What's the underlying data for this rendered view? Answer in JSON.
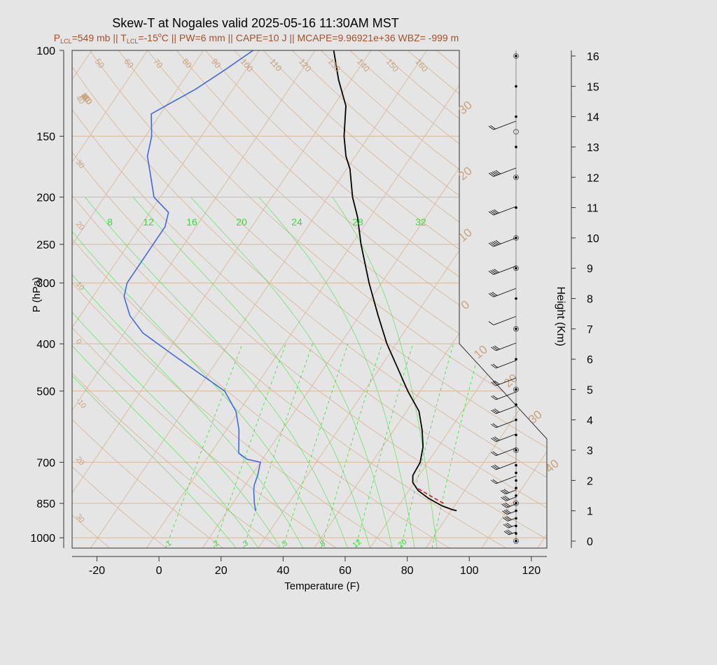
{
  "chart_data": {
    "type": "skew-t",
    "title": "Skew-T at Nogales valid 2025-05-16 11:30AM MST",
    "subtitle_parts": {
      "p_sym": "P",
      "p_sub": "LCL",
      "p_val": "=549 mb || ",
      "t_sym": "T",
      "t_sub": "LCL",
      "t_val": "=-15",
      "deg": "o",
      "t_rest": "C || PW=6 mm || CAPE=10 J || MCAPE=9.96921e+36 WBZ= -999 m"
    },
    "xlabel": "Temperature (F)",
    "ylabel": "P (hPa)",
    "right_axis_label": "Height (Km)",
    "xlim": [
      -28,
      125
    ],
    "ylim_hpa": [
      1050,
      100
    ],
    "x_ticks": [
      -20,
      0,
      20,
      40,
      60,
      80,
      100,
      120
    ],
    "p_ticks": [
      100,
      150,
      200,
      250,
      300,
      400,
      500,
      700,
      850,
      1000
    ],
    "height_ticks_km": [
      0,
      1,
      2,
      3,
      4,
      5,
      6,
      7,
      8,
      9,
      10,
      11,
      12,
      13,
      14,
      15,
      16
    ],
    "isotherm_labels": [
      "-40",
      "-30",
      "-20",
      "-10",
      "0",
      "10",
      "20",
      "30",
      "40",
      "50",
      "60",
      "70",
      "80",
      "90",
      "100",
      "110",
      "120",
      "130",
      "140",
      "150",
      "160"
    ],
    "isotherm_labels_values": [
      -40,
      -30,
      -20,
      -10,
      0,
      10,
      20,
      30,
      40,
      50,
      60,
      70,
      80,
      90,
      100,
      110,
      120,
      130,
      140,
      150,
      160
    ],
    "dry_adiabat_labels": [
      "-30",
      "-20",
      "-10",
      "0",
      "10",
      "20",
      "30",
      "40"
    ],
    "mixing_ratio_labels": [
      "1",
      "2",
      "3",
      "5",
      "8",
      "12",
      "20"
    ],
    "wetbulb_labels": [
      "8",
      "12",
      "16",
      "20",
      "24",
      "28",
      "32"
    ],
    "temperature_profile": [
      {
        "p": 880,
        "t": 87.8
      },
      {
        "p": 875,
        "t": 86
      },
      {
        "p": 860,
        "t": 82
      },
      {
        "p": 830,
        "t": 76
      },
      {
        "p": 800,
        "t": 71
      },
      {
        "p": 770,
        "t": 67.5
      },
      {
        "p": 745,
        "t": 66
      },
      {
        "p": 700,
        "t": 65.5
      },
      {
        "p": 650,
        "t": 63
      },
      {
        "p": 600,
        "t": 59
      },
      {
        "p": 550,
        "t": 54
      },
      {
        "p": 500,
        "t": 46
      },
      {
        "p": 450,
        "t": 38
      },
      {
        "p": 400,
        "t": 29
      },
      {
        "p": 350,
        "t": 20
      },
      {
        "p": 300,
        "t": 10
      },
      {
        "p": 250,
        "t": -1
      },
      {
        "p": 220,
        "t": -8
      },
      {
        "p": 200,
        "t": -14
      },
      {
        "p": 175,
        "t": -21
      },
      {
        "p": 165,
        "t": -25
      },
      {
        "p": 150,
        "t": -30
      },
      {
        "p": 130,
        "t": -36
      },
      {
        "p": 115,
        "t": -44
      },
      {
        "p": 100,
        "t": -52
      }
    ],
    "dewpoint_profile": [
      {
        "p": 880,
        "t": 23
      },
      {
        "p": 850,
        "t": 21
      },
      {
        "p": 800,
        "t": 18
      },
      {
        "p": 780,
        "t": 17
      },
      {
        "p": 745,
        "t": 16
      },
      {
        "p": 700,
        "t": 14
      },
      {
        "p": 690,
        "t": 9
      },
      {
        "p": 670,
        "t": 5
      },
      {
        "p": 600,
        "t": 0
      },
      {
        "p": 550,
        "t": -5
      },
      {
        "p": 500,
        "t": -13
      },
      {
        "p": 460,
        "t": -25
      },
      {
        "p": 420,
        "t": -38
      },
      {
        "p": 380,
        "t": -52
      },
      {
        "p": 350,
        "t": -60
      },
      {
        "p": 320,
        "t": -66
      },
      {
        "p": 300,
        "t": -68
      },
      {
        "p": 260,
        "t": -68
      },
      {
        "p": 230,
        "t": -68
      },
      {
        "p": 215,
        "t": -70
      },
      {
        "p": 200,
        "t": -78
      },
      {
        "p": 180,
        "t": -84
      },
      {
        "p": 165,
        "t": -89
      },
      {
        "p": 150,
        "t": -92
      },
      {
        "p": 135,
        "t": -97
      },
      {
        "p": 120,
        "t": -88
      },
      {
        "p": 110,
        "t": -83
      },
      {
        "p": 100,
        "t": -78
      }
    ],
    "parcel_segment": [
      {
        "p": 850,
        "t": 82
      },
      {
        "p": 830,
        "t": 78
      },
      {
        "p": 790,
        "t": 70
      }
    ],
    "hodograph_dots_km": [
      0,
      0.25,
      0.5,
      0.75,
      1,
      1.25,
      1.5,
      1.75,
      2,
      2.25,
      2.5,
      3,
      3.5,
      4,
      4.5,
      5,
      6,
      7,
      8,
      9,
      10,
      11,
      12,
      13,
      14,
      15,
      16
    ],
    "hodograph_circles_km": [
      0,
      1.25,
      3,
      5,
      7,
      9,
      10,
      12,
      13.5,
      16
    ]
  },
  "colors": {
    "background": "#e5e5e5",
    "grid": "#d9b99a",
    "grid_label": "#c9a37c",
    "temperature": "#000000",
    "dewpoint": "#4169e1",
    "green": "#33e033",
    "subtitle": "#a0522d",
    "parcel": "#d62020"
  }
}
